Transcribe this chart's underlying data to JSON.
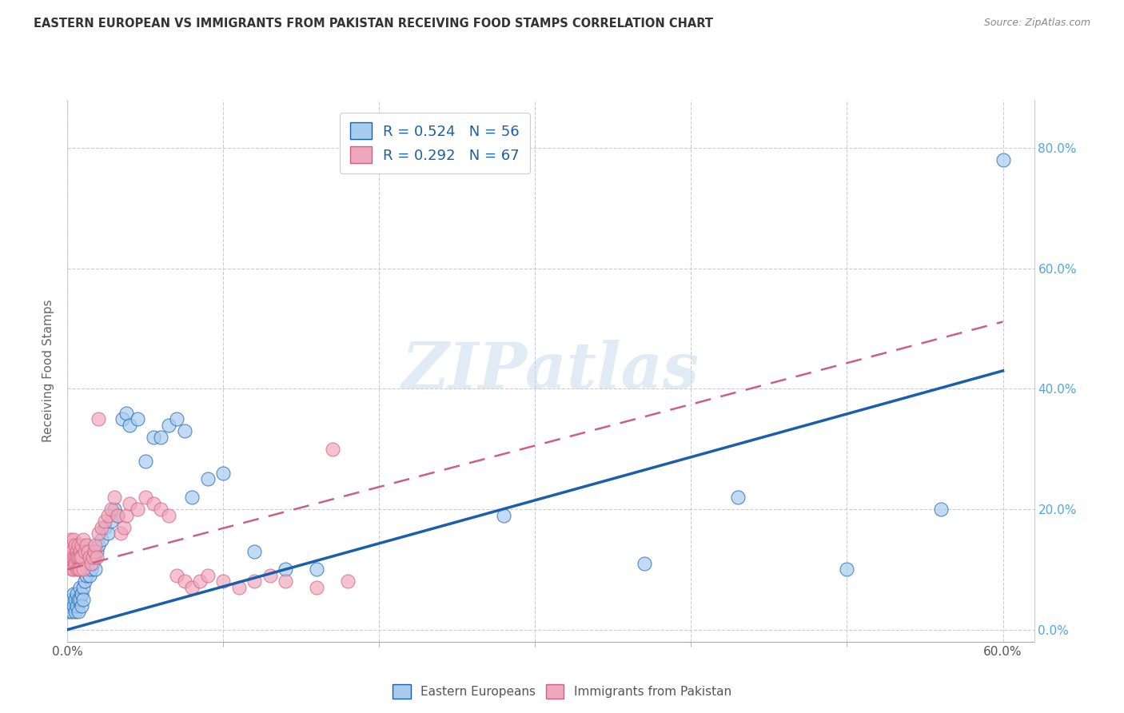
{
  "title": "EASTERN EUROPEAN VS IMMIGRANTS FROM PAKISTAN RECEIVING FOOD STAMPS CORRELATION CHART",
  "source": "Source: ZipAtlas.com",
  "ylabel": "Receiving Food Stamps",
  "xlim": [
    0.0,
    0.62
  ],
  "ylim": [
    -0.02,
    0.88
  ],
  "xticks_shown": [
    0.0,
    0.6
  ],
  "xticklabels_shown": [
    "0.0%",
    "60.0%"
  ],
  "yticks": [
    0.0,
    0.2,
    0.4,
    0.6,
    0.8
  ],
  "yticklabels": [
    "0.0%",
    "20.0%",
    "40.0%",
    "60.0%",
    "80.0%"
  ],
  "grid_xticks": [
    0.0,
    0.1,
    0.2,
    0.3,
    0.4,
    0.5,
    0.6
  ],
  "grid_yticks": [
    0.0,
    0.2,
    0.4,
    0.6,
    0.8
  ],
  "legend_r1": "R = 0.524",
  "legend_n1": "N = 56",
  "legend_r2": "R = 0.292",
  "legend_n2": "N = 67",
  "color_blue": "#a8ccf0",
  "color_pink": "#f0a8bc",
  "line_blue": "#1a5faa",
  "line_pink": "#cc6080",
  "watermark": "ZIPatlas",
  "blue_line_x0": 0.0,
  "blue_line_y0": 0.0,
  "blue_line_x1": 0.6,
  "blue_line_y1": 0.43,
  "pink_line_x0": 0.0,
  "pink_line_y0": 0.1,
  "pink_line_x1": 0.175,
  "pink_line_y1": 0.22,
  "blue_scatter_x": [
    0.001,
    0.002,
    0.003,
    0.003,
    0.004,
    0.004,
    0.005,
    0.005,
    0.006,
    0.006,
    0.007,
    0.007,
    0.008,
    0.008,
    0.009,
    0.009,
    0.01,
    0.01,
    0.011,
    0.012,
    0.013,
    0.014,
    0.015,
    0.016,
    0.017,
    0.018,
    0.019,
    0.02,
    0.022,
    0.024,
    0.026,
    0.028,
    0.03,
    0.032,
    0.035,
    0.038,
    0.04,
    0.045,
    0.05,
    0.055,
    0.06,
    0.065,
    0.07,
    0.075,
    0.08,
    0.09,
    0.1,
    0.12,
    0.14,
    0.16,
    0.28,
    0.37,
    0.43,
    0.5,
    0.56,
    0.6
  ],
  "blue_scatter_y": [
    0.03,
    0.04,
    0.05,
    0.03,
    0.06,
    0.04,
    0.05,
    0.03,
    0.06,
    0.04,
    0.05,
    0.03,
    0.07,
    0.05,
    0.06,
    0.04,
    0.07,
    0.05,
    0.08,
    0.09,
    0.1,
    0.09,
    0.1,
    0.11,
    0.12,
    0.1,
    0.13,
    0.14,
    0.15,
    0.17,
    0.16,
    0.18,
    0.2,
    0.19,
    0.35,
    0.36,
    0.34,
    0.35,
    0.28,
    0.32,
    0.32,
    0.34,
    0.35,
    0.33,
    0.22,
    0.25,
    0.26,
    0.13,
    0.1,
    0.1,
    0.19,
    0.11,
    0.22,
    0.1,
    0.2,
    0.78
  ],
  "pink_scatter_x": [
    0.001,
    0.001,
    0.002,
    0.002,
    0.002,
    0.003,
    0.003,
    0.003,
    0.003,
    0.004,
    0.004,
    0.004,
    0.005,
    0.005,
    0.005,
    0.006,
    0.006,
    0.006,
    0.007,
    0.007,
    0.007,
    0.008,
    0.008,
    0.008,
    0.009,
    0.009,
    0.01,
    0.01,
    0.011,
    0.012,
    0.013,
    0.014,
    0.015,
    0.016,
    0.017,
    0.018,
    0.019,
    0.02,
    0.022,
    0.024,
    0.026,
    0.028,
    0.03,
    0.032,
    0.034,
    0.036,
    0.038,
    0.04,
    0.045,
    0.05,
    0.055,
    0.06,
    0.065,
    0.07,
    0.075,
    0.08,
    0.085,
    0.09,
    0.1,
    0.11,
    0.12,
    0.13,
    0.14,
    0.16,
    0.17,
    0.18,
    0.02
  ],
  "pink_scatter_y": [
    0.13,
    0.12,
    0.15,
    0.13,
    0.11,
    0.14,
    0.12,
    0.1,
    0.13,
    0.15,
    0.12,
    0.1,
    0.14,
    0.12,
    0.11,
    0.13,
    0.12,
    0.1,
    0.14,
    0.12,
    0.1,
    0.13,
    0.12,
    0.1,
    0.14,
    0.12,
    0.15,
    0.1,
    0.13,
    0.14,
    0.13,
    0.12,
    0.11,
    0.12,
    0.13,
    0.14,
    0.12,
    0.16,
    0.17,
    0.18,
    0.19,
    0.2,
    0.22,
    0.19,
    0.16,
    0.17,
    0.19,
    0.21,
    0.2,
    0.22,
    0.21,
    0.2,
    0.19,
    0.09,
    0.08,
    0.07,
    0.08,
    0.09,
    0.08,
    0.07,
    0.08,
    0.09,
    0.08,
    0.07,
    0.3,
    0.08,
    0.35
  ]
}
